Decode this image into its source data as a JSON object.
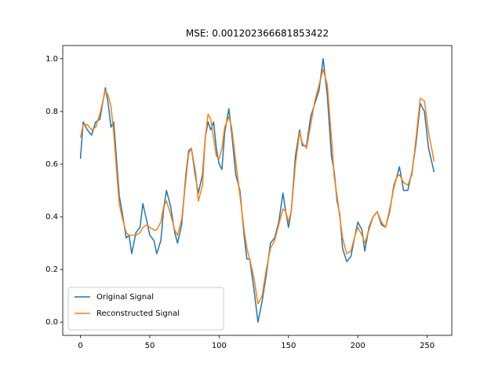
{
  "chart_data": {
    "type": "line",
    "title": "MSE: 0.001202366681853422",
    "x": [
      0,
      2,
      5,
      8,
      11,
      14,
      18,
      20,
      22,
      24,
      26,
      28,
      30,
      33,
      35,
      37,
      40,
      43,
      45,
      48,
      50,
      53,
      55,
      58,
      60,
      62,
      65,
      68,
      70,
      73,
      76,
      78,
      80,
      83,
      85,
      88,
      90,
      92,
      94,
      96,
      98,
      100,
      102,
      104,
      107,
      109,
      112,
      115,
      118,
      120,
      122,
      125,
      128,
      131,
      134,
      137,
      140,
      143,
      146,
      148,
      150,
      152,
      155,
      158,
      160,
      163,
      166,
      169,
      172,
      175,
      178,
      181,
      183,
      185,
      187,
      189,
      192,
      195,
      198,
      200,
      203,
      205,
      208,
      211,
      214,
      217,
      220,
      223,
      226,
      228,
      230,
      233,
      236,
      239,
      242,
      245,
      248,
      251,
      255
    ],
    "series": [
      {
        "name": "Original Signal",
        "color": "#1f77b4",
        "values": [
          0.62,
          0.76,
          0.73,
          0.71,
          0.76,
          0.77,
          0.89,
          0.83,
          0.74,
          0.76,
          0.62,
          0.48,
          0.42,
          0.32,
          0.33,
          0.26,
          0.34,
          0.36,
          0.45,
          0.38,
          0.33,
          0.31,
          0.26,
          0.31,
          0.43,
          0.5,
          0.44,
          0.34,
          0.3,
          0.37,
          0.56,
          0.65,
          0.66,
          0.55,
          0.49,
          0.56,
          0.7,
          0.76,
          0.73,
          0.76,
          0.66,
          0.6,
          0.58,
          0.72,
          0.81,
          0.72,
          0.56,
          0.5,
          0.33,
          0.24,
          0.24,
          0.13,
          0.0,
          0.08,
          0.18,
          0.3,
          0.32,
          0.38,
          0.49,
          0.42,
          0.36,
          0.42,
          0.63,
          0.73,
          0.67,
          0.67,
          0.78,
          0.83,
          0.88,
          1.0,
          0.86,
          0.63,
          0.57,
          0.46,
          0.41,
          0.28,
          0.23,
          0.25,
          0.33,
          0.38,
          0.35,
          0.27,
          0.36,
          0.4,
          0.42,
          0.37,
          0.36,
          0.42,
          0.52,
          0.55,
          0.59,
          0.5,
          0.5,
          0.57,
          0.68,
          0.83,
          0.8,
          0.66,
          0.57
        ]
      },
      {
        "name": "Reconstructed Signal",
        "color": "#ff7f0e",
        "values": [
          0.7,
          0.75,
          0.75,
          0.73,
          0.74,
          0.79,
          0.88,
          0.86,
          0.82,
          0.72,
          0.58,
          0.45,
          0.4,
          0.34,
          0.33,
          0.33,
          0.33,
          0.34,
          0.36,
          0.37,
          0.36,
          0.35,
          0.35,
          0.38,
          0.44,
          0.46,
          0.41,
          0.35,
          0.33,
          0.39,
          0.54,
          0.64,
          0.66,
          0.57,
          0.46,
          0.52,
          0.7,
          0.79,
          0.77,
          0.7,
          0.63,
          0.62,
          0.66,
          0.74,
          0.78,
          0.74,
          0.61,
          0.48,
          0.35,
          0.28,
          0.24,
          0.17,
          0.07,
          0.1,
          0.2,
          0.28,
          0.31,
          0.37,
          0.43,
          0.42,
          0.38,
          0.42,
          0.6,
          0.72,
          0.68,
          0.66,
          0.75,
          0.84,
          0.9,
          0.96,
          0.9,
          0.7,
          0.55,
          0.48,
          0.4,
          0.32,
          0.26,
          0.27,
          0.33,
          0.36,
          0.33,
          0.3,
          0.35,
          0.4,
          0.42,
          0.38,
          0.36,
          0.43,
          0.51,
          0.55,
          0.56,
          0.53,
          0.52,
          0.56,
          0.7,
          0.85,
          0.84,
          0.72,
          0.61
        ]
      }
    ],
    "xlim": [
      -12.75,
      267.75
    ],
    "ylim": [
      -0.05,
      1.05
    ],
    "xticks": [
      0,
      50,
      100,
      150,
      200,
      250
    ],
    "yticks": [
      {
        "value": 0,
        "label": "0.0"
      },
      0.2,
      0.4,
      0.6,
      0.8,
      {
        "value": 1,
        "label": "1.0"
      }
    ],
    "legend": "lower left"
  }
}
